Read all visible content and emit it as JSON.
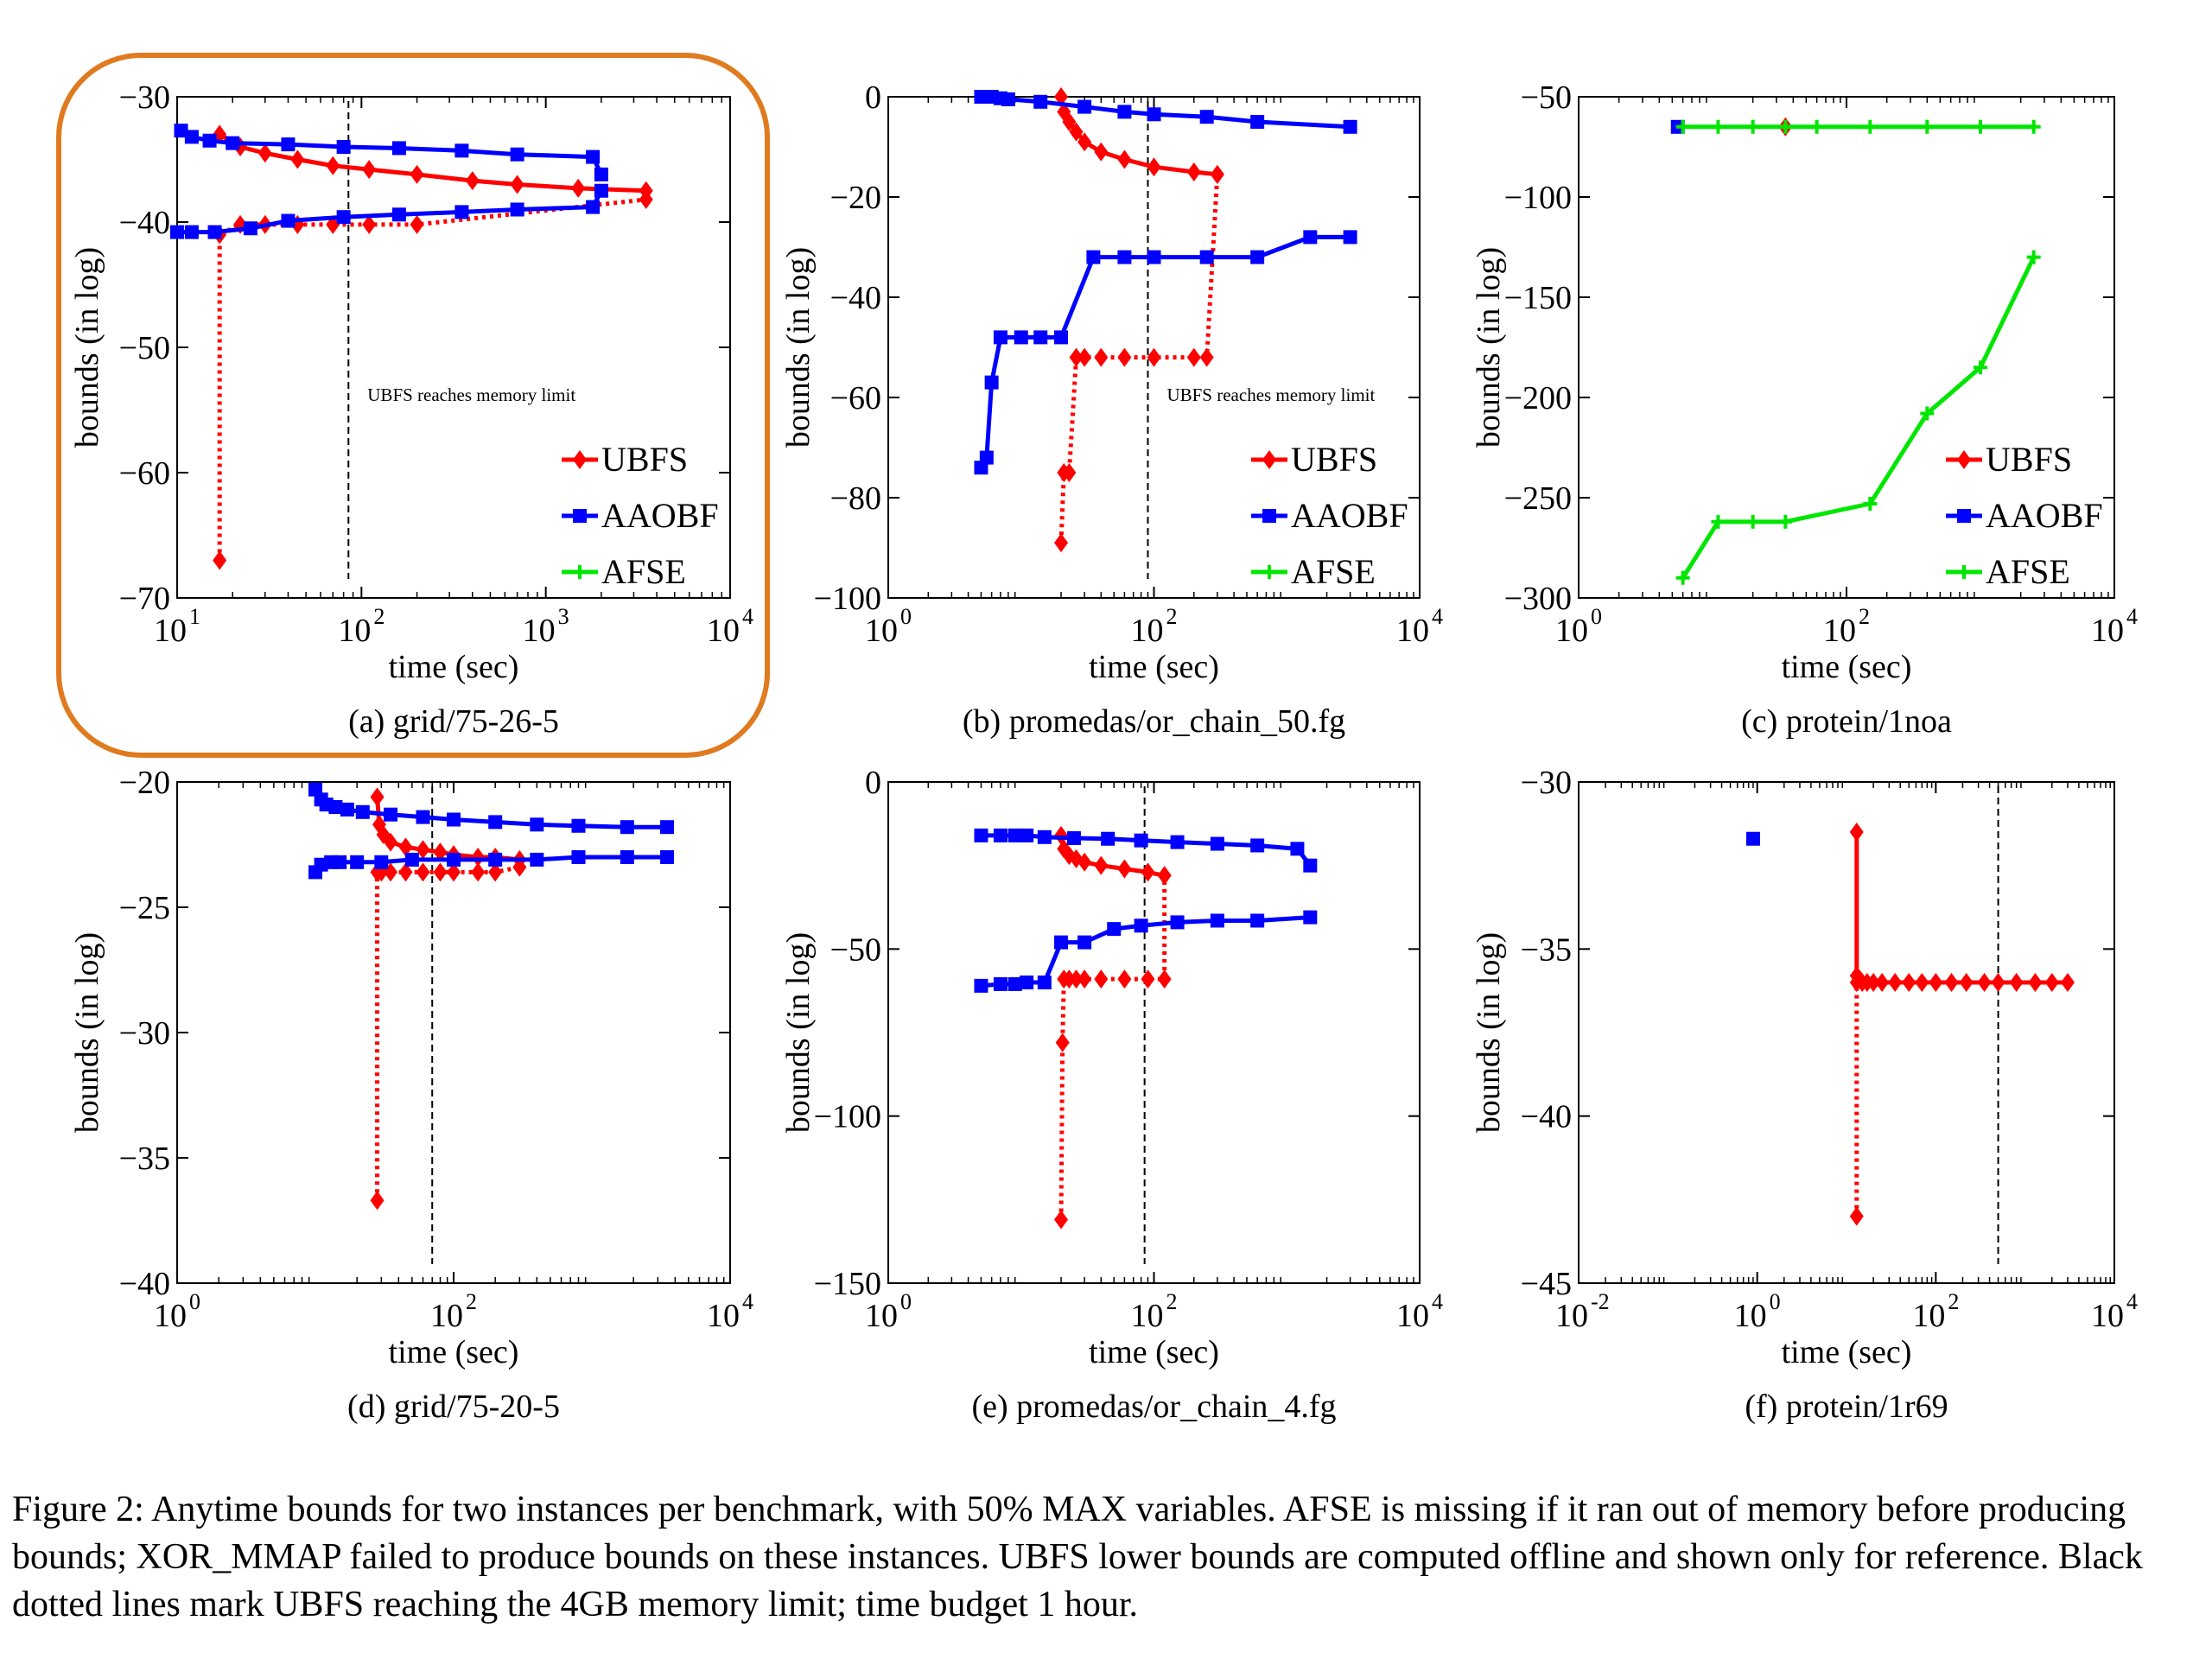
{
  "caption": "Figure 2: Anytime bounds for two instances per benchmark, with 50% MAX variables. AFSE is missing if it ran out of memory before producing bounds; XOR_MMAP failed to produce bounds on these instances. UBFS lower bounds are computed offline and shown only for reference. Black dotted lines mark UBFS reaching the 4GB memory limit; time budget 1 hour.",
  "colors": {
    "UBFS": "#ff0000",
    "AAOBF": "#0000ff",
    "AFSE": "#00e600",
    "highlight": "#e07a1f"
  },
  "chart_data": [
    {
      "id": "a",
      "type": "line",
      "highlighted": true,
      "subtitle_prefix": "(a) ",
      "subtitle_name": "grid/75-26-5",
      "xlabel": "time (sec)",
      "ylabel": "bounds (in log)",
      "xscale": "log",
      "xlim": [
        10,
        10000
      ],
      "ylim": [
        -70,
        -30
      ],
      "xticks": [
        10,
        100,
        1000,
        10000
      ],
      "yticks": [
        -70,
        -60,
        -50,
        -40,
        -30
      ],
      "memory_limit_x": 85,
      "memory_limit_label": "UBFS reaches memory limit",
      "legend": [
        "UBFS",
        "AAOBF",
        "AFSE"
      ],
      "legend_position": "bottom-right",
      "series": [
        {
          "name": "UBFS",
          "bound": "upper",
          "x": [
            17,
            22,
            30,
            45,
            70,
            110,
            200,
            400,
            700,
            1500,
            3500
          ],
          "y": [
            -33,
            -34,
            -34.5,
            -35,
            -35.5,
            -35.8,
            -36.2,
            -36.7,
            -37,
            -37.3,
            -37.5
          ]
        },
        {
          "name": "UBFS",
          "bound": "lower",
          "x": [
            17,
            17,
            22,
            30,
            45,
            70,
            110,
            200,
            3500
          ],
          "y": [
            -67,
            -41,
            -40.2,
            -40.2,
            -40.2,
            -40.2,
            -40.2,
            -40.2,
            -38.2
          ]
        },
        {
          "name": "AAOBF",
          "bound": "upper",
          "x": [
            10.5,
            12,
            15,
            20,
            40,
            80,
            160,
            350,
            700,
            1800,
            2000
          ],
          "y": [
            -32.7,
            -33.2,
            -33.5,
            -33.7,
            -33.8,
            -34,
            -34.1,
            -34.3,
            -34.6,
            -34.8,
            -36.2
          ]
        },
        {
          "name": "AAOBF",
          "bound": "lower",
          "x": [
            10,
            12,
            16,
            25,
            40,
            80,
            160,
            350,
            700,
            1800,
            2000
          ],
          "y": [
            -40.8,
            -40.8,
            -40.8,
            -40.5,
            -39.9,
            -39.6,
            -39.4,
            -39.2,
            -39,
            -38.8,
            -37.5
          ]
        }
      ]
    },
    {
      "id": "b",
      "type": "line",
      "highlighted": false,
      "subtitle_prefix": "(b) ",
      "subtitle_name": "promedas/or_chain_50.fg",
      "xlabel": "time (sec)",
      "ylabel": "bounds (in log)",
      "xscale": "log",
      "xlim": [
        1,
        10000
      ],
      "ylim": [
        -100,
        0
      ],
      "xticks": [
        1,
        100,
        10000
      ],
      "yticks": [
        -100,
        -80,
        -60,
        -40,
        -20,
        0
      ],
      "memory_limit_x": 90,
      "memory_limit_label": "UBFS reaches memory limit",
      "legend": [
        "UBFS",
        "AAOBF",
        "AFSE"
      ],
      "legend_position": "bottom-right",
      "series": [
        {
          "name": "UBFS",
          "bound": "upper",
          "x": [
            20,
            21,
            23,
            26,
            30,
            40,
            60,
            100,
            200,
            300
          ],
          "y": [
            0,
            -3,
            -5,
            -7,
            -9,
            -11,
            -12.5,
            -14,
            -15,
            -15.5
          ]
        },
        {
          "name": "UBFS",
          "bound": "lower",
          "x": [
            20,
            21,
            23,
            26,
            30,
            40,
            60,
            100,
            200,
            250,
            300
          ],
          "y": [
            -89,
            -75,
            -75,
            -52,
            -52,
            -52,
            -52,
            -52,
            -52,
            -52,
            -15.5
          ]
        },
        {
          "name": "AAOBF",
          "bound": "upper",
          "x": [
            5,
            6,
            7,
            8,
            14,
            30,
            60,
            100,
            250,
            600,
            3000
          ],
          "y": [
            0,
            0,
            -0.3,
            -0.5,
            -1,
            -2,
            -3,
            -3.5,
            -4,
            -5,
            -6
          ]
        },
        {
          "name": "AAOBF",
          "bound": "lower",
          "x": [
            5,
            5.5,
            6,
            7,
            10,
            14,
            20,
            35,
            60,
            100,
            250,
            600,
            1500,
            3000
          ],
          "y": [
            -74,
            -72,
            -57,
            -48,
            -48,
            -48,
            -48,
            -32,
            -32,
            -32,
            -32,
            -32,
            -28,
            -28
          ]
        }
      ]
    },
    {
      "id": "c",
      "type": "line",
      "highlighted": false,
      "subtitle_prefix": "(c) ",
      "subtitle_name": "protein/1noa",
      "xlabel": "time (sec)",
      "ylabel": "bounds (in log)",
      "xscale": "log",
      "xlim": [
        1,
        10000
      ],
      "ylim": [
        -300,
        -50
      ],
      "xticks": [
        1,
        100,
        10000
      ],
      "yticks": [
        -300,
        -250,
        -200,
        -150,
        -100,
        -50
      ],
      "legend": [
        "UBFS",
        "AAOBF",
        "AFSE"
      ],
      "legend_position": "bottom-right",
      "series": [
        {
          "name": "UBFS",
          "bound": "upper",
          "x": [
            35
          ],
          "y": [
            -65
          ]
        },
        {
          "name": "AAOBF",
          "bound": "upper",
          "x": [
            5.5
          ],
          "y": [
            -65
          ]
        },
        {
          "name": "AFSE",
          "bound": "upper",
          "x": [
            6,
            11,
            20,
            35,
            60,
            150,
            400,
            1000,
            2500
          ],
          "y": [
            -65,
            -65,
            -65,
            -65,
            -65,
            -65,
            -65,
            -65,
            -65
          ]
        },
        {
          "name": "AFSE",
          "bound": "lower",
          "x": [
            6,
            11,
            20,
            35,
            150,
            400,
            1000,
            2500
          ],
          "y": [
            -290,
            -262,
            -262,
            -262,
            -253,
            -208,
            -185,
            -130
          ]
        }
      ]
    },
    {
      "id": "d",
      "type": "line",
      "highlighted": false,
      "subtitle_prefix": "(d) ",
      "subtitle_name": "grid/75-20-5",
      "xlabel": "time (sec)",
      "ylabel": "bounds (in log)",
      "xscale": "log",
      "xlim": [
        1,
        10000
      ],
      "ylim": [
        -40,
        -20
      ],
      "xticks": [
        1,
        100,
        10000
      ],
      "yticks": [
        -40,
        -35,
        -30,
        -25,
        -20
      ],
      "memory_limit_x": 70,
      "series": [
        {
          "name": "UBFS",
          "bound": "upper",
          "x": [
            28,
            29,
            31,
            35,
            45,
            60,
            80,
            100,
            150,
            200,
            300
          ],
          "y": [
            -20.6,
            -21.7,
            -22.1,
            -22.4,
            -22.6,
            -22.7,
            -22.8,
            -22.9,
            -23,
            -23,
            -23.1
          ]
        },
        {
          "name": "UBFS",
          "bound": "lower",
          "x": [
            28,
            28,
            30,
            35,
            45,
            60,
            80,
            100,
            150,
            200,
            300
          ],
          "y": [
            -36.7,
            -23.6,
            -23.6,
            -23.6,
            -23.6,
            -23.6,
            -23.6,
            -23.6,
            -23.6,
            -23.6,
            -23.4
          ]
        },
        {
          "name": "AAOBF",
          "bound": "upper",
          "x": [
            10,
            11,
            12,
            14,
            17,
            22,
            35,
            60,
            100,
            200,
            400,
            800,
            1800,
            3500
          ],
          "y": [
            -20.3,
            -20.7,
            -20.9,
            -21,
            -21.1,
            -21.2,
            -21.3,
            -21.4,
            -21.5,
            -21.6,
            -21.7,
            -21.75,
            -21.8,
            -21.8
          ]
        },
        {
          "name": "AAOBF",
          "bound": "lower",
          "x": [
            10,
            11,
            13,
            15,
            20,
            30,
            50,
            100,
            200,
            400,
            800,
            1800,
            3500
          ],
          "y": [
            -23.6,
            -23.3,
            -23.2,
            -23.2,
            -23.2,
            -23.2,
            -23.1,
            -23.1,
            -23.1,
            -23.1,
            -23,
            -23,
            -23
          ]
        }
      ]
    },
    {
      "id": "e",
      "type": "line",
      "highlighted": false,
      "subtitle_prefix": "(e) ",
      "subtitle_name": "promedas/or_chain_4.fg",
      "xlabel": "time (sec)",
      "ylabel": "bounds (in log)",
      "xscale": "log",
      "xlim": [
        1,
        10000
      ],
      "ylim": [
        -150,
        0
      ],
      "xticks": [
        1,
        100,
        10000
      ],
      "yticks": [
        -150,
        -100,
        -50,
        0
      ],
      "memory_limit_x": 85,
      "series": [
        {
          "name": "UBFS",
          "bound": "upper",
          "x": [
            20,
            21,
            23,
            26,
            30,
            40,
            60,
            90,
            120
          ],
          "y": [
            -16,
            -20,
            -22,
            -23,
            -24,
            -25,
            -26,
            -27,
            -28
          ]
        },
        {
          "name": "UBFS",
          "bound": "lower",
          "x": [
            20,
            20.5,
            21,
            23,
            26,
            30,
            40,
            60,
            90,
            120,
            120
          ],
          "y": [
            -131,
            -78,
            -59,
            -59,
            -59,
            -59,
            -59,
            -59,
            -59,
            -59,
            -28
          ]
        },
        {
          "name": "AAOBF",
          "bound": "upper",
          "x": [
            5,
            7,
            9,
            11,
            15,
            25,
            45,
            80,
            150,
            300,
            600,
            1200,
            1500
          ],
          "y": [
            -16,
            -16,
            -16,
            -16,
            -16.5,
            -16.8,
            -17,
            -17.5,
            -18,
            -18.5,
            -19,
            -20,
            -25
          ]
        },
        {
          "name": "AAOBF",
          "bound": "lower",
          "x": [
            5,
            7,
            9,
            11,
            15,
            20,
            30,
            50,
            80,
            150,
            300,
            600,
            1500
          ],
          "y": [
            -61,
            -60.5,
            -60.5,
            -60,
            -60,
            -48,
            -48,
            -44,
            -43,
            -42,
            -41.5,
            -41.5,
            -40.5
          ]
        }
      ]
    },
    {
      "id": "f",
      "type": "line",
      "highlighted": false,
      "subtitle_prefix": "(f) ",
      "subtitle_name": "protein/1r69",
      "xlabel": "time (sec)",
      "ylabel": "bounds (in log)",
      "xscale": "log",
      "xlim": [
        0.01,
        10000
      ],
      "ylim": [
        -45,
        -30
      ],
      "xticks": [
        0.01,
        1,
        100,
        10000
      ],
      "yticks": [
        -45,
        -40,
        -35,
        -30
      ],
      "memory_limit_x": 500,
      "series": [
        {
          "name": "AAOBF",
          "bound": "upper",
          "x": [
            0.9
          ],
          "y": [
            -31.7
          ]
        },
        {
          "name": "UBFS",
          "bound": "upper",
          "x": [
            13,
            13,
            14,
            15,
            17,
            20,
            25,
            35,
            50,
            70,
            100,
            150,
            220,
            350,
            500,
            800,
            1300,
            2000,
            3000
          ],
          "y": [
            -31.5,
            -35.8,
            -35.9,
            -36,
            -36,
            -36,
            -36,
            -36,
            -36,
            -36,
            -36,
            -36,
            -36,
            -36,
            -36,
            -36,
            -36,
            -36,
            -36
          ]
        },
        {
          "name": "UBFS",
          "bound": "lower",
          "x": [
            13,
            13
          ],
          "y": [
            -43,
            -36
          ]
        }
      ]
    }
  ]
}
